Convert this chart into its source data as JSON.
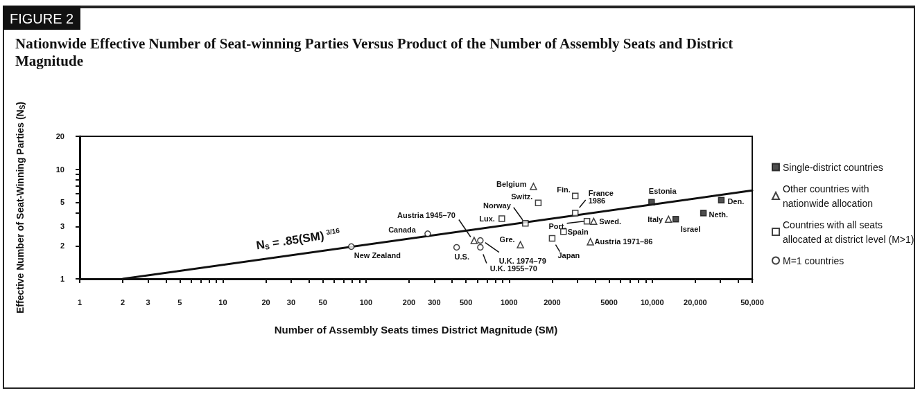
{
  "chart_data": {
    "type": "scatter",
    "title": "Nationwide Effective Number of Seat-winning Parties Versus Product of the Number of Assembly Seats and District Magnitude",
    "xlabel": "Number of Assembly Seats times District Magnitude (SM)",
    "ylabel": "Effective Number of Seat-Winning Parties (N$_{S}$)",
    "log": "xy",
    "legend": "right",
    "xlim": [
      1,
      50000
    ],
    "ylim": [
      1,
      20
    ],
    "xticks": [
      1,
      2,
      3,
      {
        "value": 4,
        "label": null
      },
      5,
      {
        "value": 6,
        "label": null
      },
      {
        "value": 7,
        "label": null
      },
      {
        "value": 8,
        "label": null
      },
      {
        "value": 9,
        "label": null
      },
      10,
      20,
      30,
      {
        "value": 40,
        "label": null
      },
      50,
      {
        "value": 60,
        "label": null
      },
      {
        "value": 70,
        "label": null
      },
      {
        "value": 80,
        "label": null
      },
      {
        "value": 90,
        "label": null
      },
      100,
      200,
      300,
      {
        "value": 400,
        "label": null
      },
      500,
      {
        "value": 600,
        "label": null
      },
      {
        "value": 700,
        "label": null
      },
      {
        "value": 800,
        "label": null
      },
      {
        "value": 900,
        "label": null
      },
      1000,
      2000,
      {
        "value": 3000,
        "label": null
      },
      {
        "value": 4000,
        "label": null
      },
      5000,
      {
        "value": 6000,
        "label": null
      },
      {
        "value": 7000,
        "label": null
      },
      {
        "value": 8000,
        "label": null
      },
      {
        "value": 9000,
        "label": null
      },
      {
        "value": 10000,
        "label": "10,000"
      },
      {
        "value": 20000,
        "label": "20,000"
      },
      {
        "value": 30000,
        "label": null
      },
      {
        "value": 40000,
        "label": null
      },
      {
        "value": 50000,
        "label": "50,000"
      }
    ],
    "yticks": [
      1,
      2,
      3,
      {
        "value": 4,
        "label": null
      },
      5,
      {
        "value": 6,
        "label": null
      },
      {
        "value": 7,
        "label": null
      },
      {
        "value": 8,
        "label": null
      },
      {
        "value": 9,
        "label": null
      },
      10,
      20
    ],
    "series": [
      {
        "name": "Single-district countries",
        "marker": "square",
        "color": "#222222",
        "x": [
          9900,
          14600,
          22800,
          30400
        ],
        "values": [
          5.0,
          3.5,
          3.98,
          5.23
        ]
      },
      {
        "name": "Other countries with nationwide allocation",
        "marker": "triangle",
        "color": "#ffffff",
        "x": [
          570,
          1480,
          1200,
          3900,
          3700,
          13000
        ],
        "values": [
          2.24,
          6.98,
          2.05,
          3.35,
          2.18,
          3.5
        ]
      },
      {
        "name": "Countries with all seats allocated at district level (M>1)",
        "marker": "square",
        "color": "#ffffff",
        "x": [
          1600,
          2900,
          2900,
          890,
          1300,
          3500,
          2400,
          2000
        ],
        "values": [
          4.94,
          5.7,
          3.98,
          3.55,
          3.21,
          3.35,
          2.7,
          2.34
        ]
      },
      {
        "name": "M=1 countries",
        "marker": "circle",
        "color": "#ffffff",
        "x": [
          79,
          270,
          430,
          630,
          630
        ],
        "values": [
          1.97,
          2.58,
          1.94,
          2.24,
          1.94
        ]
      },
      {
        "type": "line",
        "marker": "none",
        "color": "#111111",
        "x": [
          2,
          50000
        ],
        "values": [
          1,
          6.4
        ]
      }
    ],
    "annotations": [
      "FIGURE 2",
      "N$_{S}$ = .85(SM)$^{3/16}$",
      {
        "text": "New Zealand",
        "x": 79,
        "y": 1.97
      },
      {
        "text": "Canada",
        "x": 270,
        "y": 2.58
      },
      {
        "text": "Austria 1945–70",
        "x": 570,
        "y": 2.24
      },
      {
        "text": "U.S.",
        "x": 430,
        "y": 1.94
      },
      {
        "text": "U.K. 1974–79",
        "x": 630,
        "y": 2.24
      },
      {
        "text": "U.K. 1955–70",
        "x": 630,
        "y": 1.94
      },
      {
        "text": "Belgium",
        "x": 1480,
        "y": 6.98
      },
      {
        "text": "Switz.",
        "x": 1600,
        "y": 4.94
      },
      {
        "text": "Norway",
        "x": 1300,
        "y": 3.21
      },
      {
        "text": "Lux.",
        "x": 890,
        "y": 3.55
      },
      {
        "text": "Gre.",
        "x": 1200,
        "y": 2.05
      },
      {
        "text": "Fin.",
        "x": 2900,
        "y": 5.7
      },
      {
        "text": "France 1986",
        "x": 2900,
        "y": 3.98
      },
      {
        "text": "Port.",
        "x": 3500,
        "y": 3.35
      },
      {
        "text": "Swed.",
        "x": 3900,
        "y": 3.35
      },
      {
        "text": "Spain",
        "x": 2400,
        "y": 2.7
      },
      {
        "text": "Japan",
        "x": 2000,
        "y": 2.34
      },
      {
        "text": "Austria 1971–86",
        "x": 3700,
        "y": 2.18
      },
      {
        "text": "Estonia",
        "x": 9900,
        "y": 5.0
      },
      {
        "text": "Italy",
        "x": 13000,
        "y": 3.5
      },
      {
        "text": "Israel",
        "x": 14600,
        "y": 3.5
      },
      {
        "text": "Neth.",
        "x": 22800,
        "y": 3.98
      },
      {
        "text": "Den.",
        "x": 30400,
        "y": 5.23
      }
    ]
  }
}
